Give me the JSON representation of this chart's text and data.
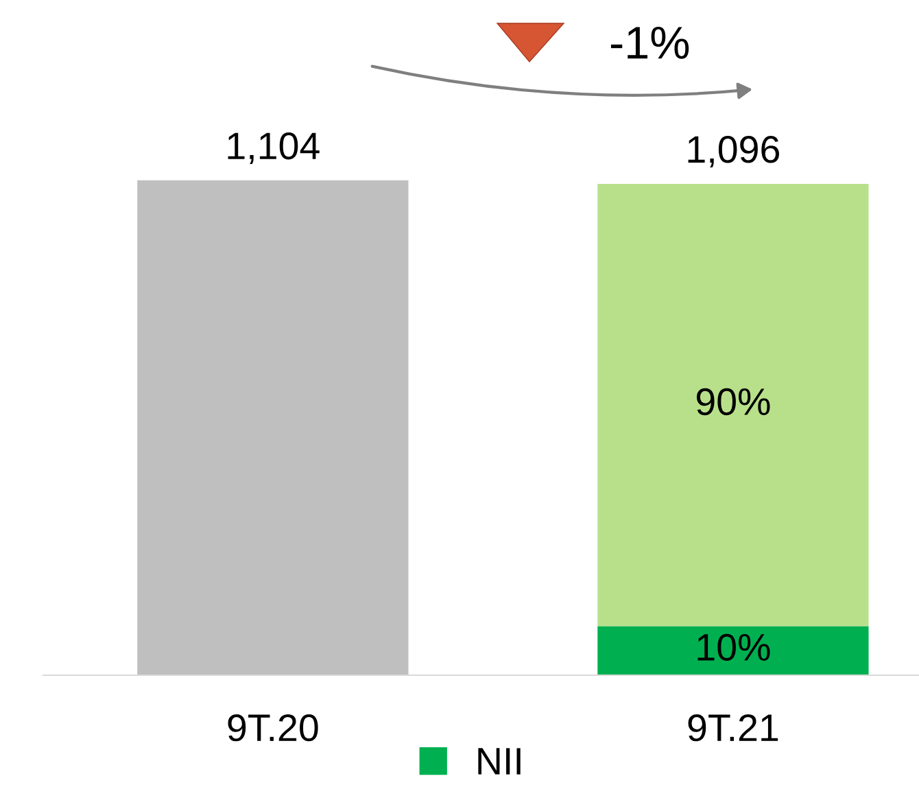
{
  "chart_data": {
    "type": "bar",
    "stacked": true,
    "tick_labels": "x",
    "categories": [
      "9T.20",
      "9T.21"
    ],
    "series": [
      {
        "name": "NII",
        "color": "#00b050",
        "values": [
          null,
          109.6
        ]
      },
      {
        "color": "#b8e08a",
        "values": [
          null,
          986.4
        ]
      },
      {
        "color": "#bfbfbf",
        "values": [
          1104,
          null
        ],
        "value_labels": [
          "1,104",
          null
        ]
      }
    ],
    "totals": [
      null,
      "1,096"
    ],
    "annotations": [
      "-1%",
      "10%",
      "90%"
    ],
    "legend": "bottom",
    "grid": false
  }
}
